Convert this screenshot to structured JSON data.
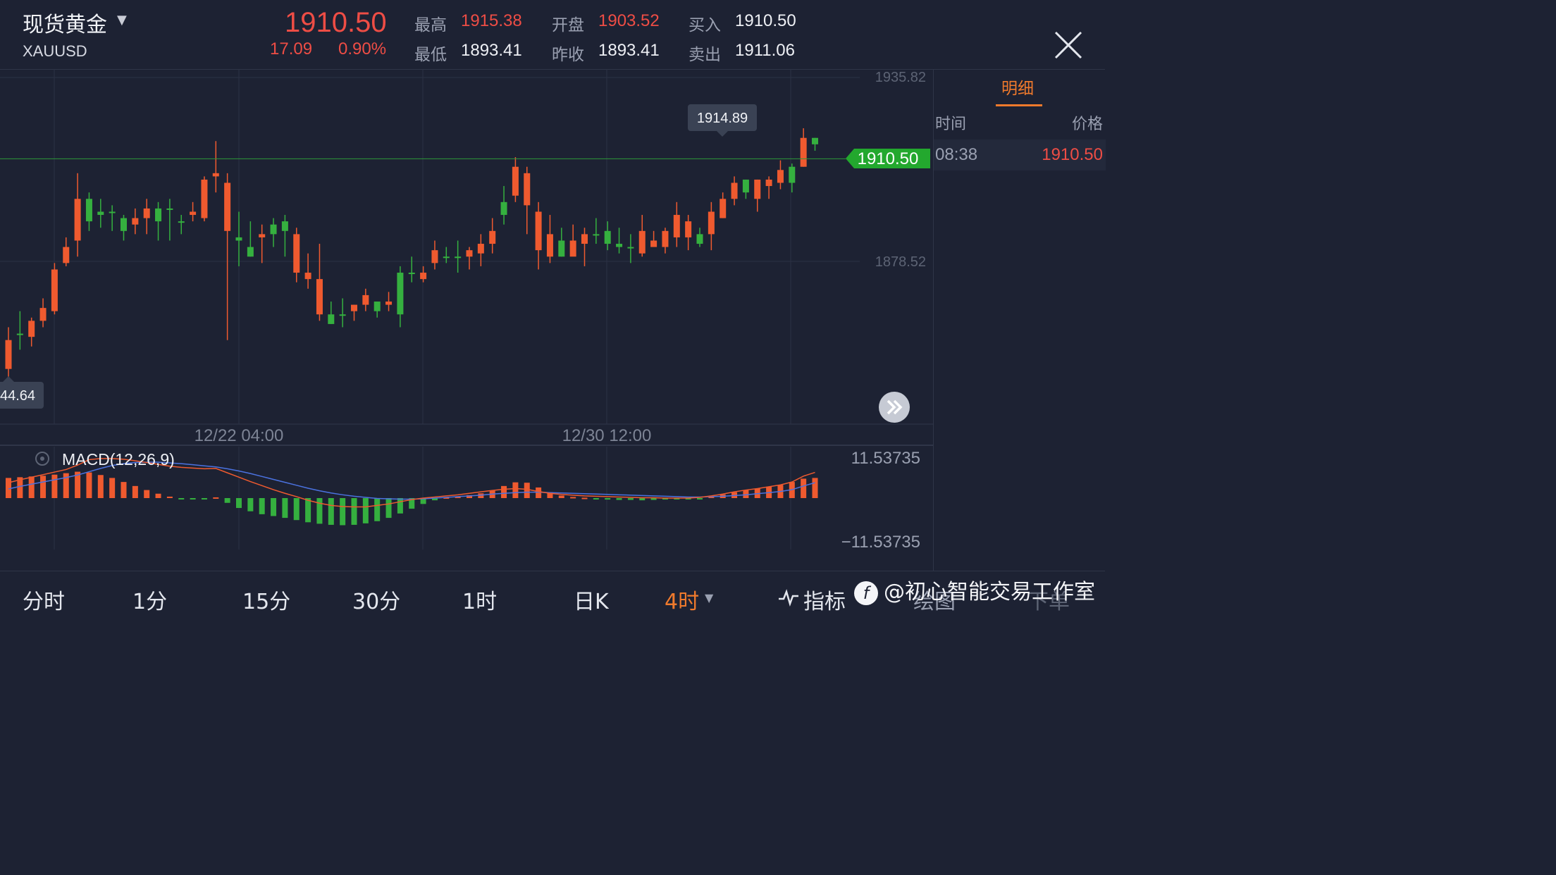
{
  "header": {
    "name": "现货黄金",
    "code": "XAUUSD",
    "last": "1910.50",
    "change": "17.09",
    "change_pct": "0.90%",
    "high_label": "最高",
    "high": "1915.38",
    "low_label": "最低",
    "low": "1893.41",
    "open_label": "开盘",
    "open": "1903.52",
    "prev_label": "昨收",
    "prev": "1893.41",
    "bid_label": "买入",
    "bid": "1910.50",
    "ask_label": "卖出",
    "ask": "1911.06"
  },
  "side": {
    "tab": "明细",
    "col_time": "时间",
    "col_price": "价格",
    "rows": [
      {
        "time": "08:38",
        "price": "1910.50"
      }
    ]
  },
  "chart_data": {
    "type": "candlestick",
    "axis": {
      "top_label": "1935.82",
      "mid_label": "1878.52",
      "min_label": "44.64",
      "high_marker": "1914.89",
      "last_marker": "1910.50"
    },
    "price_range": [
      1821.22,
      1935.82
    ],
    "x_labels": [
      "12/22 04:00",
      "12/30 12:00"
    ],
    "candles": [
      [
        1854,
        1845,
        1858,
        1834
      ],
      [
        1856,
        1856,
        1863,
        1851
      ],
      [
        1860,
        1855,
        1861,
        1852
      ],
      [
        1864,
        1860,
        1867,
        1858
      ],
      [
        1876,
        1863,
        1878,
        1862
      ],
      [
        1883,
        1878,
        1886,
        1877
      ],
      [
        1898,
        1885,
        1906,
        1880
      ],
      [
        1891,
        1898,
        1900,
        1888
      ],
      [
        1893,
        1894,
        1898,
        1889
      ],
      [
        1894,
        1894,
        1896,
        1888
      ],
      [
        1888,
        1892,
        1893,
        1885
      ],
      [
        1892,
        1890,
        1895,
        1887
      ],
      [
        1895,
        1892,
        1898,
        1887
      ],
      [
        1891,
        1895,
        1897,
        1885
      ],
      [
        1895,
        1895,
        1898,
        1885
      ],
      [
        1891,
        1891,
        1893,
        1887
      ],
      [
        1894,
        1893,
        1897,
        1891
      ],
      [
        1904,
        1892,
        1905,
        1891
      ],
      [
        1906,
        1905,
        1916,
        1900
      ],
      [
        1903,
        1888,
        1906,
        1854
      ],
      [
        1885,
        1886,
        1894,
        1877
      ],
      [
        1880,
        1883,
        1891,
        1880
      ],
      [
        1887,
        1886,
        1890,
        1878
      ],
      [
        1887,
        1890,
        1892,
        1883
      ],
      [
        1888,
        1891,
        1893,
        1880
      ],
      [
        1887,
        1875,
        1889,
        1872
      ],
      [
        1875,
        1873,
        1881,
        1870
      ],
      [
        1873,
        1862,
        1884,
        1860
      ],
      [
        1859,
        1862,
        1866,
        1859
      ],
      [
        1862,
        1862,
        1867,
        1858
      ],
      [
        1865,
        1863,
        1865,
        1860
      ],
      [
        1868,
        1865,
        1870,
        1863
      ],
      [
        1863,
        1866,
        1866,
        1861
      ],
      [
        1866,
        1865,
        1869,
        1863
      ],
      [
        1862,
        1875,
        1877,
        1858
      ],
      [
        1875,
        1875,
        1880,
        1872
      ],
      [
        1875,
        1873,
        1877,
        1872
      ],
      [
        1882,
        1878,
        1885,
        1876
      ],
      [
        1880,
        1880,
        1883,
        1878
      ],
      [
        1880,
        1880,
        1885,
        1875
      ],
      [
        1882,
        1880,
        1883,
        1876
      ],
      [
        1884,
        1881,
        1887,
        1877
      ],
      [
        1888,
        1884,
        1892,
        1881
      ],
      [
        1893,
        1897,
        1902,
        1890
      ],
      [
        1908,
        1899,
        1911,
        1897
      ],
      [
        1906,
        1896,
        1908,
        1887
      ],
      [
        1894,
        1882,
        1897,
        1876
      ],
      [
        1887,
        1880,
        1893,
        1878
      ],
      [
        1880,
        1885,
        1889,
        1880
      ],
      [
        1885,
        1880,
        1890,
        1882
      ],
      [
        1887,
        1884,
        1889,
        1877
      ],
      [
        1887,
        1887,
        1892,
        1884
      ],
      [
        1884,
        1888,
        1891,
        1882
      ],
      [
        1883,
        1884,
        1889,
        1881
      ],
      [
        1883,
        1883,
        1887,
        1878
      ],
      [
        1888,
        1881,
        1893,
        1880
      ],
      [
        1885,
        1883,
        1888,
        1884
      ],
      [
        1888,
        1883,
        1889,
        1881
      ],
      [
        1893,
        1886,
        1897,
        1883
      ],
      [
        1891,
        1886,
        1893,
        1882
      ],
      [
        1884,
        1887,
        1889,
        1883
      ],
      [
        1894,
        1887,
        1897,
        1882
      ],
      [
        1898,
        1892,
        1900,
        1892
      ],
      [
        1903,
        1898,
        1905,
        1896
      ],
      [
        1900,
        1904,
        1904,
        1898
      ],
      [
        1904,
        1898,
        1904,
        1894
      ],
      [
        1904,
        1902,
        1905,
        1898
      ],
      [
        1907,
        1903,
        1910,
        1901
      ],
      [
        1903,
        1908,
        1909,
        1900
      ],
      [
        1917,
        1908,
        1920,
        1908
      ],
      [
        1915,
        1917,
        1917,
        1913
      ]
    ],
    "macd": {
      "label": "MACD(12,26,9)",
      "top_label": "11.53735",
      "bottom_label": "−11.53735",
      "range": [
        -11.53735,
        11.53735
      ],
      "hist": [
        5.5,
        5.7,
        5.9,
        6.1,
        6.4,
        6.8,
        7.2,
        7.0,
        6.3,
        5.5,
        4.4,
        3.3,
        2.2,
        1.2,
        0.4,
        -0.2,
        -0.3,
        -0.3,
        0.2,
        -1.3,
        -2.7,
        -3.6,
        -4.4,
        -4.9,
        -5.4,
        -6.0,
        -6.6,
        -7.0,
        -7.3,
        -7.4,
        -7.3,
        -6.9,
        -6.3,
        -5.4,
        -4.2,
        -2.9,
        -1.6,
        -0.6,
        0.2,
        0.4,
        0.8,
        1.3,
        2.0,
        3.3,
        4.3,
        4.2,
        2.9,
        1.6,
        0.7,
        0.3,
        0.1,
        -0.2,
        -0.4,
        -0.5,
        -0.5,
        -0.6,
        -0.5,
        -0.4,
        -0.3,
        -0.2,
        -0.2,
        0.4,
        1.0,
        1.6,
        2.2,
        2.6,
        3.1,
        3.6,
        4.4,
        5.3,
        5.5
      ],
      "dif": [
        4.2,
        5.0,
        5.7,
        6.4,
        7.1,
        7.8,
        9.0,
        10.5,
        10.8,
        10.8,
        10.6,
        10.2,
        9.7,
        9.2,
        8.7,
        8.4,
        8.2,
        8.0,
        8.1,
        6.9,
        5.7,
        4.5,
        3.4,
        2.3,
        1.3,
        0.4,
        -0.6,
        -1.4,
        -2.0,
        -2.3,
        -2.4,
        -2.4,
        -2.0,
        -1.6,
        -1.0,
        -0.4,
        0.0,
        0.3,
        0.6,
        0.9,
        1.3,
        1.7,
        2.1,
        2.4,
        2.6,
        2.4,
        1.8,
        1.3,
        1.0,
        0.8,
        0.6,
        0.5,
        0.4,
        0.3,
        0.2,
        0.1,
        0.1,
        0.0,
        0.0,
        0.0,
        0.2,
        0.6,
        1.1,
        1.7,
        2.2,
        2.6,
        3.1,
        3.6,
        4.4,
        6.0,
        7.0
      ],
      "dea": [
        2.5,
        3.2,
        3.8,
        4.4,
        5.0,
        5.6,
        6.3,
        7.2,
        8.1,
        8.9,
        9.4,
        9.7,
        9.8,
        9.8,
        9.6,
        9.4,
        9.1,
        8.8,
        8.5,
        8.0,
        7.4,
        6.7,
        5.9,
        5.1,
        4.3,
        3.5,
        2.7,
        2.0,
        1.4,
        0.9,
        0.5,
        0.2,
        -0.1,
        -0.2,
        -0.3,
        -0.3,
        -0.2,
        0.0,
        0.2,
        0.4,
        0.6,
        0.8,
        1.1,
        1.3,
        1.5,
        1.6,
        1.6,
        1.5,
        1.4,
        1.3,
        1.2,
        1.1,
        1.0,
        0.9,
        0.8,
        0.7,
        0.6,
        0.5,
        0.4,
        0.3,
        0.3,
        0.4,
        0.5,
        0.7,
        0.9,
        1.2,
        1.5,
        1.8,
        2.3,
        3.3,
        4.2
      ]
    }
  },
  "colors": {
    "up": "#ef5a2f",
    "down": "#35b03f",
    "bg": "#1d2233",
    "dif": "#ef5a2f",
    "dea": "#4b72e0",
    "accent": "#f07a2c",
    "last_tag": "#23a82e"
  },
  "footer": {
    "timeframes": [
      "分时",
      "1分",
      "15分",
      "30分",
      "1时",
      "日K",
      "4时"
    ],
    "indicator": "指标",
    "draw": "绘图",
    "order": "下单",
    "watermark": "@初心智能交易工作室"
  }
}
